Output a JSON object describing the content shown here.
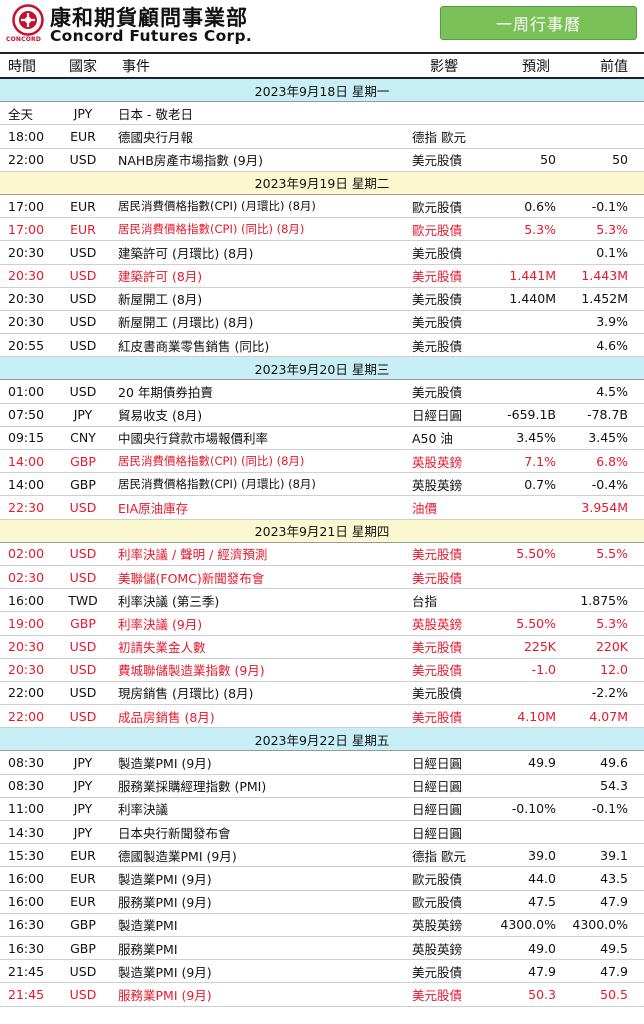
{
  "header": {
    "company_cn": "康和期貨顧問事業部",
    "company_en": "Concord Futures Corp.",
    "logo_sub": "CONCORD",
    "week_button": "一周行事曆"
  },
  "columns": {
    "time": "時間",
    "country": "國家",
    "event": "事件",
    "impact": "影響",
    "forecast": "預測",
    "previous": "前值"
  },
  "colors": {
    "day_blue": "#c8eef6",
    "day_yellow": "#fbf7cf",
    "highlight": "#e6192c",
    "button": "#7ac257"
  },
  "days": [
    {
      "date": "2023年9月18日  星期一",
      "shade": "blue",
      "events": [
        {
          "time": "全天",
          "country": "JPY",
          "event": "日本 - 敬老日",
          "impact": "",
          "forecast": "",
          "previous": "",
          "red": false
        },
        {
          "time": "18:00",
          "country": "EUR",
          "event": "德國央行月報",
          "impact": "德指 歐元",
          "forecast": "",
          "previous": "",
          "red": false
        },
        {
          "time": "22:00",
          "country": "USD",
          "event": "NAHB房產市場指數 (9月)",
          "impact": "美元股債",
          "forecast": "50",
          "previous": "50",
          "red": false
        }
      ]
    },
    {
      "date": "2023年9月19日  星期二",
      "shade": "yellow",
      "events": [
        {
          "time": "17:00",
          "country": "EUR",
          "event": "居民消費價格指數(CPI) (月環比) (8月)",
          "impact": "歐元股債",
          "forecast": "0.6%",
          "previous": "-0.1%",
          "red": false
        },
        {
          "time": "17:00",
          "country": "EUR",
          "event": "居民消費價格指數(CPI) (同比) (8月)",
          "impact": "歐元股債",
          "forecast": "5.3%",
          "previous": "5.3%",
          "red": true
        },
        {
          "time": "20:30",
          "country": "USD",
          "event": "建築許可 (月環比) (8月)",
          "impact": "美元股債",
          "forecast": "",
          "previous": "0.1%",
          "red": false
        },
        {
          "time": "20:30",
          "country": "USD",
          "event": "建築許可 (8月)",
          "impact": "美元股債",
          "forecast": "1.441M",
          "previous": "1.443M",
          "red": true
        },
        {
          "time": "20:30",
          "country": "USD",
          "event": "新屋開工 (8月)",
          "impact": "美元股債",
          "forecast": "1.440M",
          "previous": "1.452M",
          "red": false
        },
        {
          "time": "20:30",
          "country": "USD",
          "event": "新屋開工 (月環比) (8月)",
          "impact": "美元股債",
          "forecast": "",
          "previous": "3.9%",
          "red": false
        },
        {
          "time": "20:55",
          "country": "USD",
          "event": "紅皮書商業零售銷售 (同比)",
          "impact": "美元股債",
          "forecast": "",
          "previous": "4.6%",
          "red": false
        }
      ]
    },
    {
      "date": "2023年9月20日  星期三",
      "shade": "blue",
      "events": [
        {
          "time": "01:00",
          "country": "USD",
          "event": "20 年期債券拍賣",
          "impact": "美元股債",
          "forecast": "",
          "previous": "4.5%",
          "red": false
        },
        {
          "time": "07:50",
          "country": "JPY",
          "event": "貿易收支 (8月)",
          "impact": "日經日圓",
          "forecast": "-659.1B",
          "previous": "-78.7B",
          "red": false
        },
        {
          "time": "09:15",
          "country": "CNY",
          "event": "中國央行貸款市場報價利率",
          "impact": "A50 油",
          "forecast": "3.45%",
          "previous": "3.45%",
          "red": false
        },
        {
          "time": "14:00",
          "country": "GBP",
          "event": "居民消費價格指數(CPI) (同比) (8月)",
          "impact": "英股英鎊",
          "forecast": "7.1%",
          "previous": "6.8%",
          "red": true
        },
        {
          "time": "14:00",
          "country": "GBP",
          "event": "居民消費價格指數(CPI) (月環比) (8月)",
          "impact": "英股英鎊",
          "forecast": "0.7%",
          "previous": "-0.4%",
          "red": false
        },
        {
          "time": "22:30",
          "country": "USD",
          "event": "EIA原油庫存",
          "impact": "油價",
          "forecast": "",
          "previous": "3.954M",
          "red": true
        }
      ]
    },
    {
      "date": "2023年9月21日  星期四",
      "shade": "yellow",
      "events": [
        {
          "time": "02:00",
          "country": "USD",
          "event": "利率決議 / 聲明 / 經濟預測",
          "impact": "美元股債",
          "forecast": "5.50%",
          "previous": "5.5%",
          "red": true
        },
        {
          "time": "02:30",
          "country": "USD",
          "event": "美聯儲(FOMC)新聞發布會",
          "impact": "美元股債",
          "forecast": "",
          "previous": "",
          "red": true
        },
        {
          "time": "16:00",
          "country": "TWD",
          "event": "利率決議 (第三季)",
          "impact": "台指",
          "forecast": "",
          "previous": "1.875%",
          "red": false
        },
        {
          "time": "19:00",
          "country": "GBP",
          "event": "利率決議 (9月)",
          "impact": "英股英鎊",
          "forecast": "5.50%",
          "previous": "5.3%",
          "red": true
        },
        {
          "time": "20:30",
          "country": "USD",
          "event": "初請失業金人數",
          "impact": "美元股債",
          "forecast": "225K",
          "previous": "220K",
          "red": true
        },
        {
          "time": "20:30",
          "country": "USD",
          "event": "費城聯儲製造業指數 (9月)",
          "impact": "美元股債",
          "forecast": "-1.0",
          "previous": "12.0",
          "red": true
        },
        {
          "time": "22:00",
          "country": "USD",
          "event": "現房銷售 (月環比) (8月)",
          "impact": "美元股債",
          "forecast": "",
          "previous": "-2.2%",
          "red": false
        },
        {
          "time": "22:00",
          "country": "USD",
          "event": "成品房銷售 (8月)",
          "impact": "美元股債",
          "forecast": "4.10M",
          "previous": "4.07M",
          "red": true
        }
      ]
    },
    {
      "date": "2023年9月22日  星期五",
      "shade": "blue",
      "events": [
        {
          "time": "08:30",
          "country": "JPY",
          "event": "製造業PMI (9月)",
          "impact": "日經日圓",
          "forecast": "49.9",
          "previous": "49.6",
          "red": false
        },
        {
          "time": "08:30",
          "country": "JPY",
          "event": "服務業採購經理指數 (PMI)",
          "impact": "日經日圓",
          "forecast": "",
          "previous": "54.3",
          "red": false
        },
        {
          "time": "11:00",
          "country": "JPY",
          "event": "利率決議",
          "impact": "日經日圓",
          "forecast": "-0.10%",
          "previous": "-0.1%",
          "red": false
        },
        {
          "time": "14:30",
          "country": "JPY",
          "event": "日本央行新聞發布會",
          "impact": "日經日圓",
          "forecast": "",
          "previous": "",
          "red": false
        },
        {
          "time": "15:30",
          "country": "EUR",
          "event": "德國製造業PMI (9月)",
          "impact": "德指 歐元",
          "forecast": "39.0",
          "previous": "39.1",
          "red": false
        },
        {
          "time": "16:00",
          "country": "EUR",
          "event": "製造業PMI (9月)",
          "impact": "歐元股債",
          "forecast": "44.0",
          "previous": "43.5",
          "red": false
        },
        {
          "time": "16:00",
          "country": "EUR",
          "event": "服務業PMI (9月)",
          "impact": "歐元股債",
          "forecast": "47.5",
          "previous": "47.9",
          "red": false
        },
        {
          "time": "16:30",
          "country": "GBP",
          "event": "製造業PMI",
          "impact": "英股英鎊",
          "forecast": "4300.0%",
          "previous": "4300.0%",
          "red": false
        },
        {
          "time": "16:30",
          "country": "GBP",
          "event": "服務業PMI",
          "impact": "英股英鎊",
          "forecast": "49.0",
          "previous": "49.5",
          "red": false
        },
        {
          "time": "21:45",
          "country": "USD",
          "event": "製造業PMI (9月)",
          "impact": "美元股債",
          "forecast": "47.9",
          "previous": "47.9",
          "red": false
        },
        {
          "time": "21:45",
          "country": "USD",
          "event": "服務業PMI (9月)",
          "impact": "美元股債",
          "forecast": "50.3",
          "previous": "50.5",
          "red": true
        }
      ]
    }
  ]
}
